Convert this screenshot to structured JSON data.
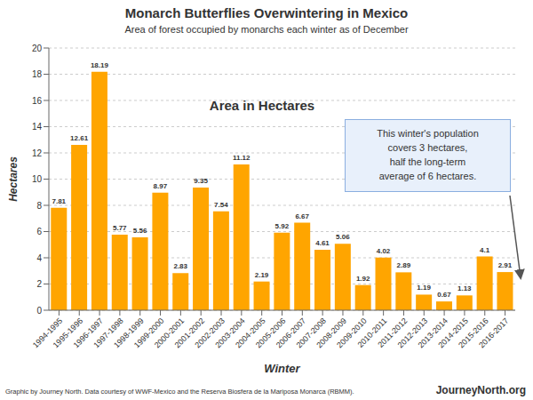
{
  "chart_data": {
    "type": "bar",
    "title": "Monarch Butterflies Overwintering in Mexico",
    "subtitle": "Area of forest occupied by monarchs each winter as of December",
    "xlabel": "Winter",
    "ylabel": "Hectares",
    "categories": [
      "1994-1995",
      "1995-1996",
      "1996-1997",
      "1997-1998",
      "1998-1999",
      "1999-2000",
      "2000-2001",
      "2001-2002",
      "2002-2003",
      "2003-2004",
      "2004-2005",
      "2005-2006",
      "2006-2007",
      "2007-2008",
      "2008-2009",
      "2009-2010",
      "2010-2011",
      "2011-2012",
      "2012-2013",
      "2013-2014",
      "2014-2015",
      "2015-2016",
      "2016-2017"
    ],
    "values": [
      7.81,
      12.61,
      18.19,
      5.77,
      5.56,
      8.97,
      2.83,
      9.35,
      7.54,
      11.12,
      2.19,
      5.92,
      6.67,
      4.61,
      5.06,
      1.92,
      4.02,
      2.89,
      1.19,
      0.67,
      1.13,
      4.1,
      2.91
    ],
    "color": "#FFA500",
    "ylim": [
      0,
      20
    ],
    "yticks": [
      0,
      2,
      4,
      6,
      8,
      10,
      12,
      14,
      16,
      18,
      20
    ],
    "grid": true,
    "data_labels": true,
    "annotations": [
      "Area in Hectares",
      "This winter's population\ncovers 3 hectares,\nhalf the long-term\naverage of 6 hectares.",
      "Graphic by Journey North. Data courtesy of WWF-Mexico and the Reserva Biosfera de la Mariposa Monarca (RBMM).",
      "JourneyNorth.org"
    ]
  }
}
